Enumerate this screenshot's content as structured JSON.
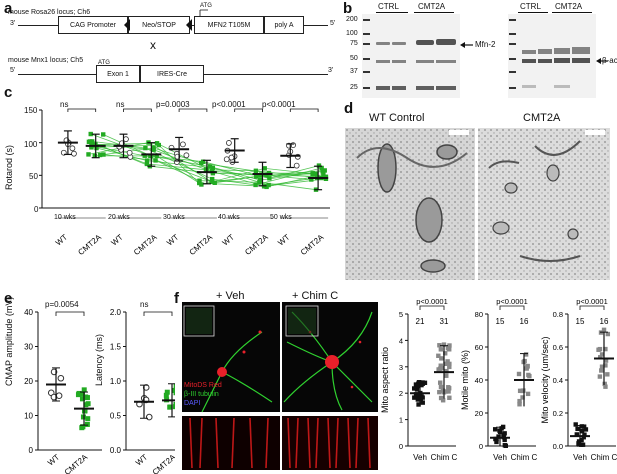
{
  "panel_labels": {
    "a": "a",
    "b": "b",
    "c": "c",
    "d": "d",
    "e": "e",
    "f": "f"
  },
  "panel_a": {
    "row1_left": "mouse Rosa26 locus; Ch6",
    "row1_3prime": "3'",
    "row1_5prime": "5'",
    "boxes1": [
      "CAG Promoter",
      "Neo/STOP",
      "MFN2 T105M",
      "poly A"
    ],
    "atg1": "ATG",
    "cross": "x",
    "row2_left": "mouse Mnx1 locus; Ch5",
    "row2_5prime": "5'",
    "row2_3prime": "3'",
    "boxes2": [
      "Exon 1",
      "IRES-Cre"
    ],
    "atg2": "ATG"
  },
  "panel_b": {
    "left_cols": [
      "CTRL",
      "CMT2A"
    ],
    "right_cols": [
      "CTRL",
      "CMT2A"
    ],
    "markers": [
      "200",
      "100",
      "75",
      "50",
      "37",
      "25"
    ],
    "left_arrow": "Mfn-2",
    "right_arrow": "β-actin"
  },
  "panel_c": {
    "ylabel": "Rotarod (s)",
    "yticks": [
      "0",
      "50",
      "100",
      "150"
    ],
    "sig": [
      "ns",
      "ns",
      "p=0.0003",
      "p<0.0001",
      "p<0.0001"
    ],
    "weeks": [
      "10 wks",
      "20 wks",
      "30 wks",
      "40 wks",
      "50 wks"
    ],
    "groups": [
      "WT",
      "CMT2A"
    ]
  },
  "panel_d": {
    "left": "WT Control",
    "right": "CMT2A"
  },
  "panel_e": {
    "left_ylabel": "CMAP amplitude (mV)",
    "left_yticks": [
      "0",
      "10",
      "20",
      "30",
      "40"
    ],
    "left_sig": "p=0.0054",
    "right_ylabel": "Latency (ms)",
    "right_yticks": [
      "0.0",
      "0.5",
      "1.0",
      "1.5",
      "2.0"
    ],
    "right_sig": "ns",
    "groups": [
      "WT",
      "CMT2A"
    ]
  },
  "panel_f": {
    "veh_title": "+ Veh",
    "chim_title": "+ Chim C",
    "legend": [
      "MitoDS Red",
      "β-III tubulin",
      "DAPI"
    ],
    "legend_colors": [
      "#e8202a",
      "#2fd12f",
      "#5a5aff"
    ],
    "charts": [
      {
        "ylabel": "Mito aspect ratio",
        "yticks": [
          "0",
          "1",
          "2",
          "3",
          "4",
          "5"
        ],
        "sig": "p<0.0001",
        "n": [
          "21",
          "31"
        ],
        "groups": [
          "Veh",
          "Chim C"
        ]
      },
      {
        "ylabel": "Motile mito (%)",
        "yticks": [
          "0",
          "20",
          "40",
          "60",
          "80"
        ],
        "sig": "p<0.0001",
        "n": [
          "15",
          "16"
        ],
        "groups": [
          "Veh",
          "Chim C"
        ]
      },
      {
        "ylabel": "Mito velocity (um/sec)",
        "yticks": [
          "0.0",
          "0.2",
          "0.4",
          "0.6",
          "0.8"
        ],
        "sig": "p<0.0001",
        "n": [
          "15",
          "16"
        ],
        "groups": [
          "Veh",
          "Chim C"
        ]
      }
    ]
  },
  "chart_data": [
    {
      "type": "scatter",
      "title": "",
      "ylabel": "Rotarod (s)",
      "ylim": [
        0,
        150
      ],
      "categories": [
        "10 wks WT",
        "10 wks CMT2A",
        "20 wks WT",
        "20 wks CMT2A",
        "30 wks WT",
        "30 wks CMT2A",
        "40 wks WT",
        "40 wks CMT2A",
        "50 wks WT",
        "50 wks CMT2A"
      ],
      "means": [
        100,
        95,
        95,
        82,
        90,
        55,
        88,
        52,
        80,
        46
      ]
    },
    {
      "type": "scatter",
      "ylabel": "CMAP amplitude (mV)",
      "ylim": [
        0,
        40
      ],
      "categories": [
        "WT",
        "CMT2A"
      ],
      "means": [
        19,
        12
      ]
    },
    {
      "type": "scatter",
      "ylabel": "Latency (ms)",
      "ylim": [
        0,
        2
      ],
      "categories": [
        "WT",
        "CMT2A"
      ],
      "means": [
        0.7,
        0.72
      ]
    },
    {
      "type": "scatter",
      "ylabel": "Mito aspect ratio",
      "ylim": [
        0,
        5
      ],
      "categories": [
        "Veh",
        "Chim C"
      ],
      "means": [
        2.0,
        2.8
      ]
    },
    {
      "type": "scatter",
      "ylabel": "Motile mito (%)",
      "ylim": [
        0,
        80
      ],
      "categories": [
        "Veh",
        "Chim C"
      ],
      "means": [
        5,
        40
      ]
    },
    {
      "type": "scatter",
      "ylabel": "Mito velocity (um/sec)",
      "ylim": [
        0,
        0.8
      ],
      "categories": [
        "Veh",
        "Chim C"
      ],
      "means": [
        0.06,
        0.53
      ]
    }
  ]
}
